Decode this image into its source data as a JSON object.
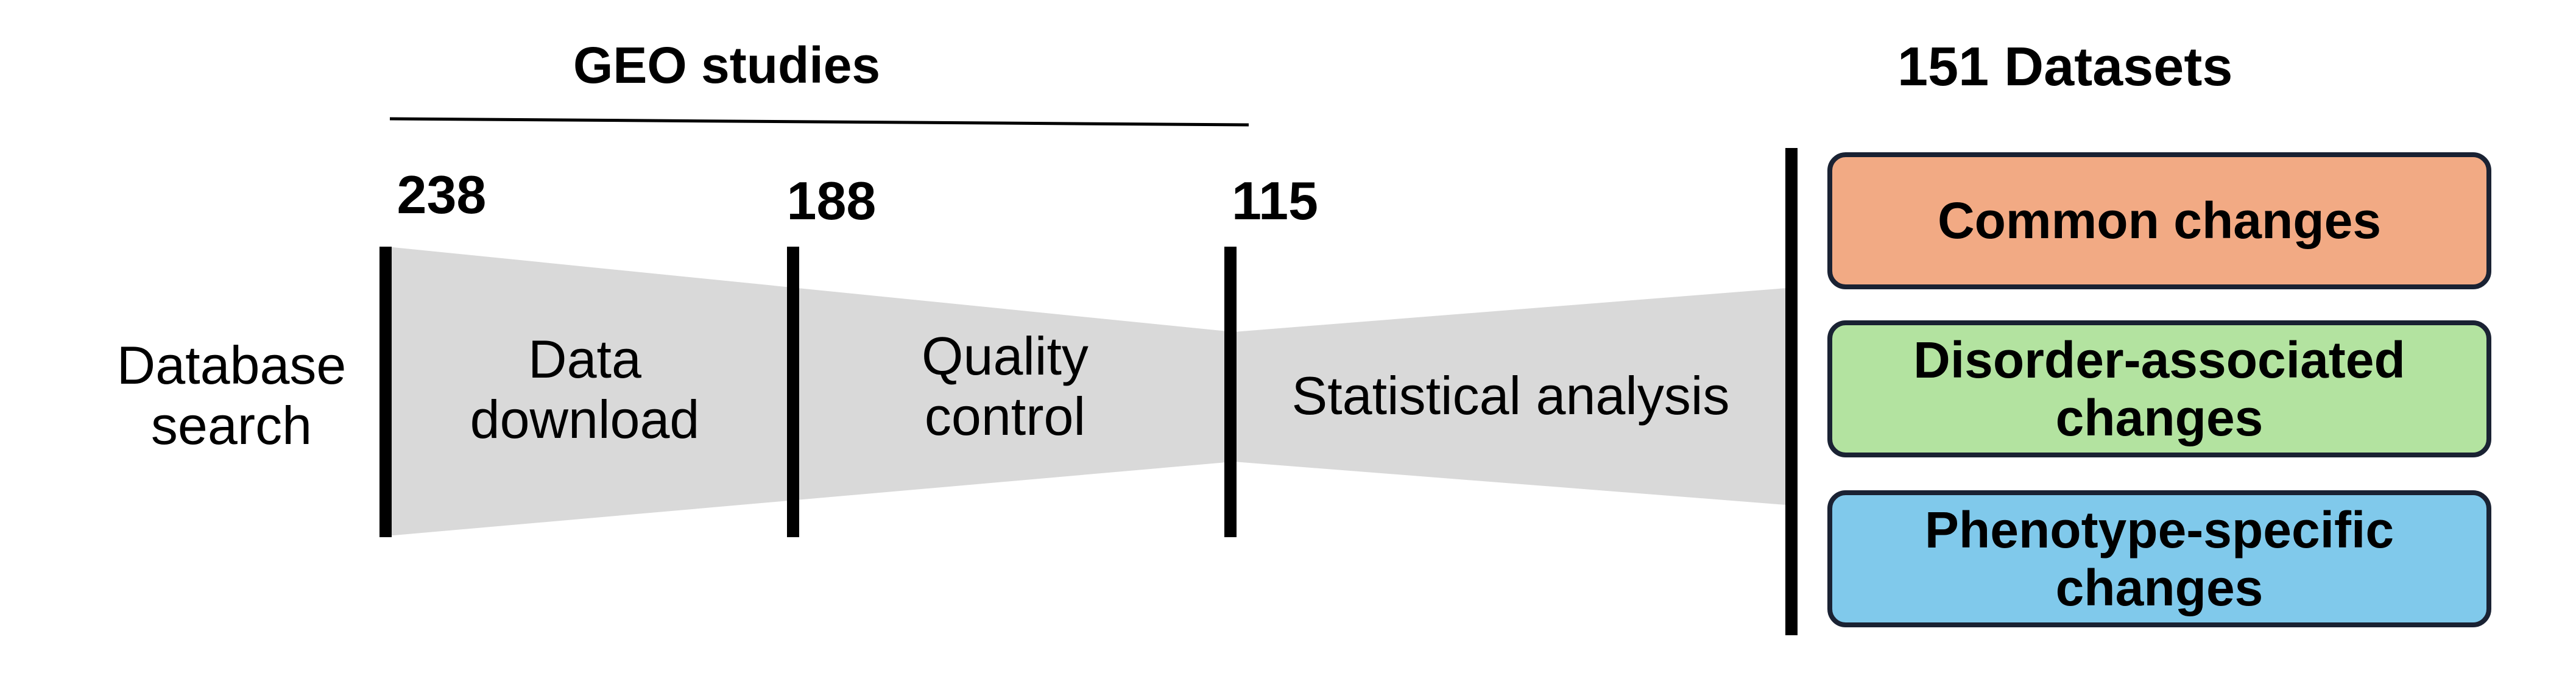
{
  "header": {
    "geo_title": "GEO studies",
    "datasets_title": "151 Datasets"
  },
  "counts": {
    "c238": "238",
    "c188": "188",
    "c115": "115"
  },
  "stages": {
    "database_search": [
      "Database",
      "search"
    ],
    "data_download": [
      "Data",
      "download"
    ],
    "quality_control": [
      "Quality",
      "control"
    ],
    "statistical_analysis": "Statistical analysis"
  },
  "results": [
    {
      "lines": [
        "Common changes"
      ],
      "color": "#f2aa84"
    },
    {
      "lines": [
        "Disorder-associated",
        "changes"
      ],
      "color": "#b3e3a0"
    },
    {
      "lines": [
        "Phenotype-specific",
        "changes"
      ],
      "color": "#80c9eb"
    }
  ],
  "colors": {
    "funnel": "#d9d9d9",
    "bar": "#000000",
    "box_border": "#1a2233"
  }
}
